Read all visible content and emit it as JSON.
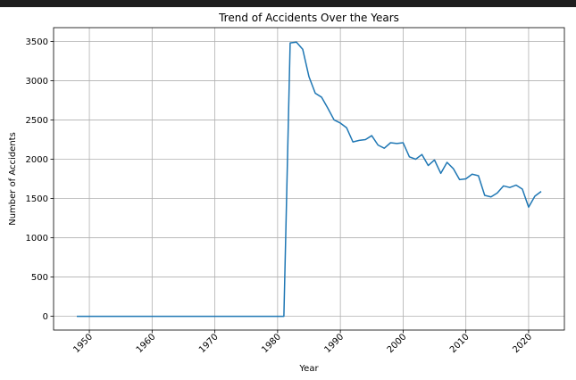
{
  "chart_data": {
    "type": "line",
    "title": "Trend of Accidents Over the Years",
    "xlabel": "Year",
    "ylabel": "Number of Accidents",
    "xlim": [
      1943.3,
      1926.7
    ],
    "ylim": [
      -175,
      3675
    ],
    "xticks": [
      1950,
      1960,
      1970,
      1980,
      1990,
      2000,
      2010,
      2020
    ],
    "yticks": [
      0,
      500,
      1000,
      1500,
      2000,
      2500,
      3000,
      3500
    ],
    "grid": true,
    "color": "#1f77b4",
    "series": [
      {
        "x": [
          1948,
          1949,
          1950,
          1951,
          1952,
          1953,
          1954,
          1955,
          1956,
          1957,
          1958,
          1959,
          1960,
          1961,
          1962,
          1963,
          1964,
          1965,
          1966,
          1967,
          1968,
          1969,
          1970,
          1971,
          1972,
          1973,
          1974,
          1975,
          1976,
          1977,
          1978,
          1979,
          1980,
          1981,
          1982,
          1983,
          1984,
          1985,
          1986,
          1987,
          1988,
          1989,
          1990,
          1991,
          1992,
          1993,
          1994,
          1995,
          1996,
          1997,
          1998,
          1999,
          2000,
          2001,
          2002,
          2003,
          2004,
          2005,
          2006,
          2007,
          2008,
          2009,
          2010,
          2011,
          2012,
          2013,
          2014,
          2015,
          2016,
          2017,
          2018,
          2019,
          2020,
          2021,
          2022
        ],
        "y": [
          0,
          0,
          0,
          0,
          0,
          0,
          0,
          0,
          0,
          0,
          0,
          0,
          0,
          0,
          0,
          0,
          0,
          0,
          0,
          0,
          0,
          0,
          0,
          0,
          0,
          0,
          0,
          0,
          0,
          0,
          0,
          0,
          0,
          0,
          3480,
          3490,
          3400,
          3050,
          2840,
          2790,
          2650,
          2500,
          2460,
          2400,
          2220,
          2240,
          2250,
          2300,
          2180,
          2140,
          2210,
          2200,
          2210,
          2030,
          2000,
          2060,
          1920,
          1990,
          1820,
          1960,
          1880,
          1740,
          1750,
          1810,
          1790,
          1540,
          1520,
          1570,
          1660,
          1640,
          1670,
          1620,
          1390,
          1530,
          1590
        ]
      }
    ]
  }
}
